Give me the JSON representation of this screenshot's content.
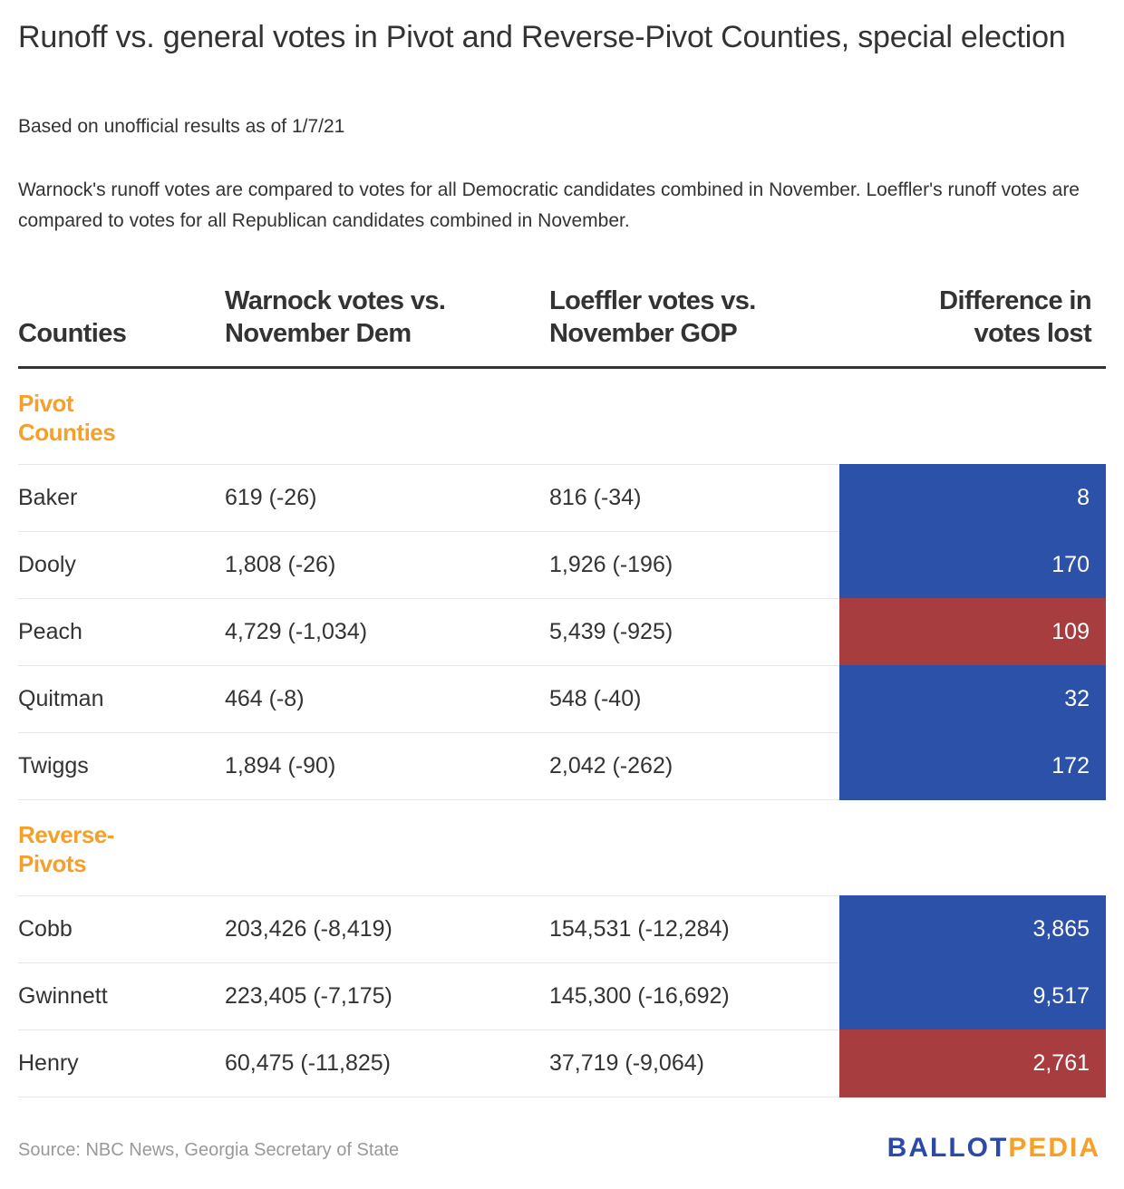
{
  "title": "Runoff vs. general votes in Pivot and Reverse-Pivot Counties, special election",
  "subtitle": "Based on unofficial results as of 1/7/21",
  "description": "Warnock's runoff votes are compared to votes for all Democratic candidates combined in November. Loeffler's runoff votes are compared to votes for all Republican candidates combined in November.",
  "colors": {
    "dem": "#2b52a8",
    "gop": "#a73d3f",
    "group": "#f4a02a"
  },
  "chart_data": {
    "type": "table",
    "columns": [
      "Counties",
      "Warnock votes vs. November Dem",
      "Loeffler votes vs. November GOP",
      "Difference in votes lost"
    ],
    "groups": [
      {
        "label": "Pivot Counties",
        "rows": [
          {
            "county": "Baker",
            "warnock": "619 (-26)",
            "loeffler": "816 (-34)",
            "diff": "8",
            "party": "dem"
          },
          {
            "county": "Dooly",
            "warnock": "1,808 (-26)",
            "loeffler": "1,926 (-196)",
            "diff": "170",
            "party": "dem"
          },
          {
            "county": "Peach",
            "warnock": "4,729 (-1,034)",
            "loeffler": "5,439 (-925)",
            "diff": "109",
            "party": "gop"
          },
          {
            "county": "Quitman",
            "warnock": "464 (-8)",
            "loeffler": "548 (-40)",
            "diff": "32",
            "party": "dem"
          },
          {
            "county": "Twiggs",
            "warnock": "1,894 (-90)",
            "loeffler": "2,042 (-262)",
            "diff": "172",
            "party": "dem"
          }
        ]
      },
      {
        "label": "Reverse-Pivots",
        "rows": [
          {
            "county": "Cobb",
            "warnock": "203,426 (-8,419)",
            "loeffler": "154,531 (-12,284)",
            "diff": "3,865",
            "party": "dem"
          },
          {
            "county": "Gwinnett",
            "warnock": "223,405 (-7,175)",
            "loeffler": "145,300 (-16,692)",
            "diff": "9,517",
            "party": "dem"
          },
          {
            "county": "Henry",
            "warnock": "60,475 (-11,825)",
            "loeffler": "37,719 (-9,064)",
            "diff": "2,761",
            "party": "gop"
          }
        ]
      }
    ]
  },
  "footer": {
    "source": "Source: NBC News, Georgia Secretary of State",
    "logo_part1": "BALLOT",
    "logo_part2": "PEDIA"
  }
}
